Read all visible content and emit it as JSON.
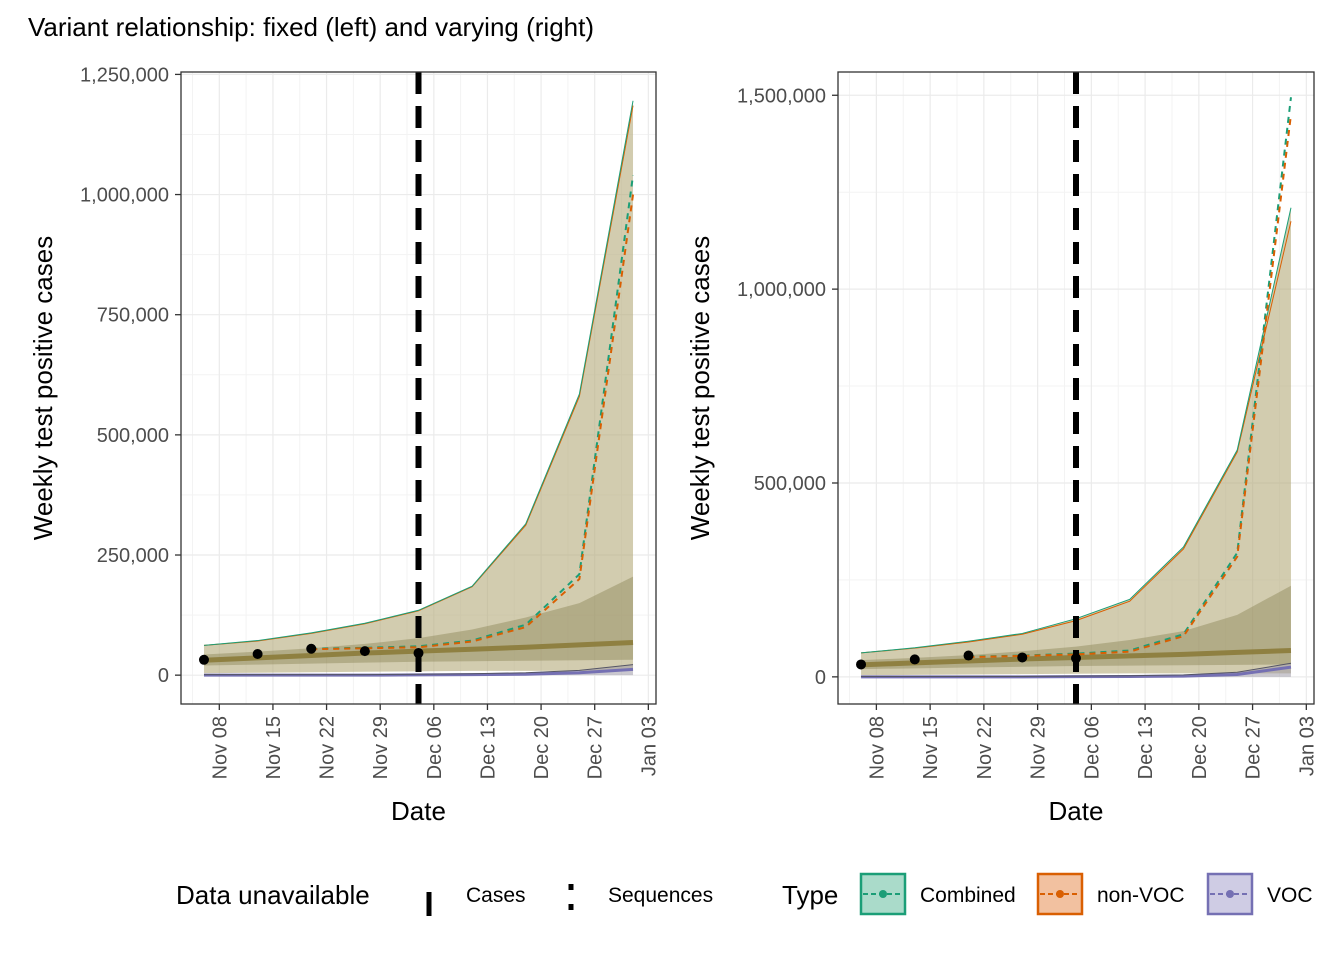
{
  "chart_data": {
    "type": "line",
    "title": "Variant relationship: fixed (left) and varying (right)",
    "panels": [
      {
        "name": "fixed",
        "xlabel": "Date",
        "ylabel": "Weekly test positive cases",
        "xlim": [
          "2021-11-03",
          "2022-01-04"
        ],
        "ylim": [
          -60000,
          1255000
        ],
        "x_ticks": [
          {
            "date": "2021-11-08",
            "label": "Nov 08"
          },
          {
            "date": "2021-11-15",
            "label": "Nov 15"
          },
          {
            "date": "2021-11-22",
            "label": "Nov 22"
          },
          {
            "date": "2021-11-29",
            "label": "Nov 29"
          },
          {
            "date": "2021-12-06",
            "label": "Dec 06"
          },
          {
            "date": "2021-12-13",
            "label": "Dec 13"
          },
          {
            "date": "2021-12-20",
            "label": "Dec 20"
          },
          {
            "date": "2021-12-27",
            "label": "Dec 27"
          },
          {
            "date": "2022-01-03",
            "label": "Jan 03"
          }
        ],
        "y_ticks": [
          {
            "value": 0,
            "label": "0"
          },
          {
            "value": 250000,
            "label": "250,000"
          },
          {
            "value": 500000,
            "label": "500,000"
          },
          {
            "value": 750000,
            "label": "750,000"
          },
          {
            "value": 1000000,
            "label": "1,000,000"
          },
          {
            "value": 1250000,
            "label": "1,250,000"
          }
        ],
        "vline_date": "2021-12-04",
        "dates": [
          "2021-11-06",
          "2021-11-13",
          "2021-11-20",
          "2021-11-27",
          "2021-12-04",
          "2021-12-11",
          "2021-12-18",
          "2021-12-25",
          "2022-01-01"
        ],
        "combined_median": [
          31000,
          36000,
          41000,
          46000,
          50000,
          54000,
          58000,
          63000,
          68000
        ],
        "combined_inner_upper": [
          43000,
          49000,
          56000,
          65000,
          77000,
          95000,
          120000,
          150000,
          205000
        ],
        "combined_inner_lower": [
          20000,
          22000,
          24000,
          26000,
          28000,
          29000,
          30000,
          31000,
          32000
        ],
        "combined_outer_upper": [
          62000,
          72000,
          88000,
          108000,
          135000,
          185000,
          315000,
          585000,
          1195000
        ],
        "combined_outer_lower": [
          4000,
          5000,
          6000,
          7000,
          8000,
          9000,
          9000,
          9000,
          9000
        ],
        "nonvoc_outer_upper": [
          62000,
          71000,
          87000,
          107000,
          134000,
          184000,
          312000,
          580000,
          1185000
        ],
        "combined_observed_sequences": [
          null,
          null,
          55000,
          57000,
          60000,
          72000,
          105000,
          210000,
          1040000
        ],
        "nonvoc_observed_sequences": [
          null,
          null,
          54000,
          56000,
          58000,
          70000,
          100000,
          200000,
          1000000
        ],
        "voc_median": [
          0,
          0,
          0,
          0,
          500,
          1000,
          2000,
          5000,
          12000
        ],
        "voc_upper": [
          1000,
          1000,
          1000,
          1000,
          2000,
          3000,
          5000,
          10000,
          22000
        ],
        "observed_dates": [
          "2021-11-06",
          "2021-11-13",
          "2021-11-20",
          "2021-11-27",
          "2021-12-04"
        ],
        "observed_cases": [
          32000,
          44000,
          55000,
          50000,
          46000
        ]
      },
      {
        "name": "varying",
        "xlabel": "Date",
        "ylabel": "Weekly test positive cases",
        "xlim": [
          "2021-11-03",
          "2022-01-04"
        ],
        "ylim": [
          -70000,
          1560000
        ],
        "x_ticks": [
          {
            "date": "2021-11-08",
            "label": "Nov 08"
          },
          {
            "date": "2021-11-15",
            "label": "Nov 15"
          },
          {
            "date": "2021-11-22",
            "label": "Nov 22"
          },
          {
            "date": "2021-11-29",
            "label": "Nov 29"
          },
          {
            "date": "2021-12-06",
            "label": "Dec 06"
          },
          {
            "date": "2021-12-13",
            "label": "Dec 13"
          },
          {
            "date": "2021-12-20",
            "label": "Dec 20"
          },
          {
            "date": "2021-12-27",
            "label": "Dec 27"
          },
          {
            "date": "2022-01-03",
            "label": "Jan 03"
          }
        ],
        "y_ticks": [
          {
            "value": 0,
            "label": "0"
          },
          {
            "value": 500000,
            "label": "500,000"
          },
          {
            "value": 1000000,
            "label": "1,000,000"
          },
          {
            "value": 1500000,
            "label": "1,500,000"
          }
        ],
        "vline_date": "2021-12-04",
        "dates": [
          "2021-11-06",
          "2021-11-13",
          "2021-11-20",
          "2021-11-27",
          "2021-12-04",
          "2021-12-11",
          "2021-12-18",
          "2021-12-25",
          "2022-01-01"
        ],
        "combined_median": [
          31000,
          36000,
          41000,
          46000,
          50000,
          54000,
          58000,
          63000,
          68000
        ],
        "combined_inner_upper": [
          43000,
          49000,
          56000,
          66000,
          78000,
          95000,
          118000,
          160000,
          235000
        ],
        "combined_inner_lower": [
          20000,
          22000,
          24000,
          26000,
          28000,
          29000,
          30000,
          31000,
          32000
        ],
        "combined_outer_upper": [
          62000,
          75000,
          92000,
          112000,
          150000,
          200000,
          335000,
          585000,
          1210000
        ],
        "combined_outer_lower": [
          4000,
          5000,
          6000,
          7000,
          8000,
          9000,
          9000,
          9000,
          9000
        ],
        "nonvoc_outer_upper": [
          62000,
          74000,
          90000,
          110000,
          145000,
          195000,
          330000,
          580000,
          1175000
        ],
        "combined_observed_sequences": [
          null,
          null,
          52000,
          55000,
          60000,
          68000,
          110000,
          320000,
          1495000
        ],
        "nonvoc_observed_sequences": [
          null,
          null,
          51000,
          54000,
          58000,
          65000,
          105000,
          310000,
          1450000
        ],
        "voc_median": [
          0,
          0,
          0,
          0,
          500,
          1000,
          2000,
          6000,
          25000
        ],
        "voc_upper": [
          1000,
          1000,
          1000,
          1000,
          2000,
          3000,
          5000,
          12000,
          35000
        ],
        "observed_dates": [
          "2021-11-06",
          "2021-11-13",
          "2021-11-20",
          "2021-11-27",
          "2021-12-04"
        ],
        "observed_cases": [
          32000,
          45000,
          55000,
          50000,
          48000
        ]
      }
    ],
    "legend": {
      "placement": "bottom",
      "data_unavailable_title": "Data unavailable",
      "data_unavailable_items": [
        "Cases",
        "Sequences"
      ],
      "type_title": "Type",
      "type_items": [
        "Combined",
        "non-VOC",
        "VOC"
      ]
    },
    "colors": {
      "combined": "#1b9e77",
      "nonvoc": "#d95f02",
      "voc": "#7570b3",
      "band_outer": "#b7ac7e",
      "band_inner": "#8c8456",
      "median_line": "#8b7b3a",
      "points": "#000000",
      "vline": "#000000",
      "grid": "#ebebeb"
    }
  }
}
